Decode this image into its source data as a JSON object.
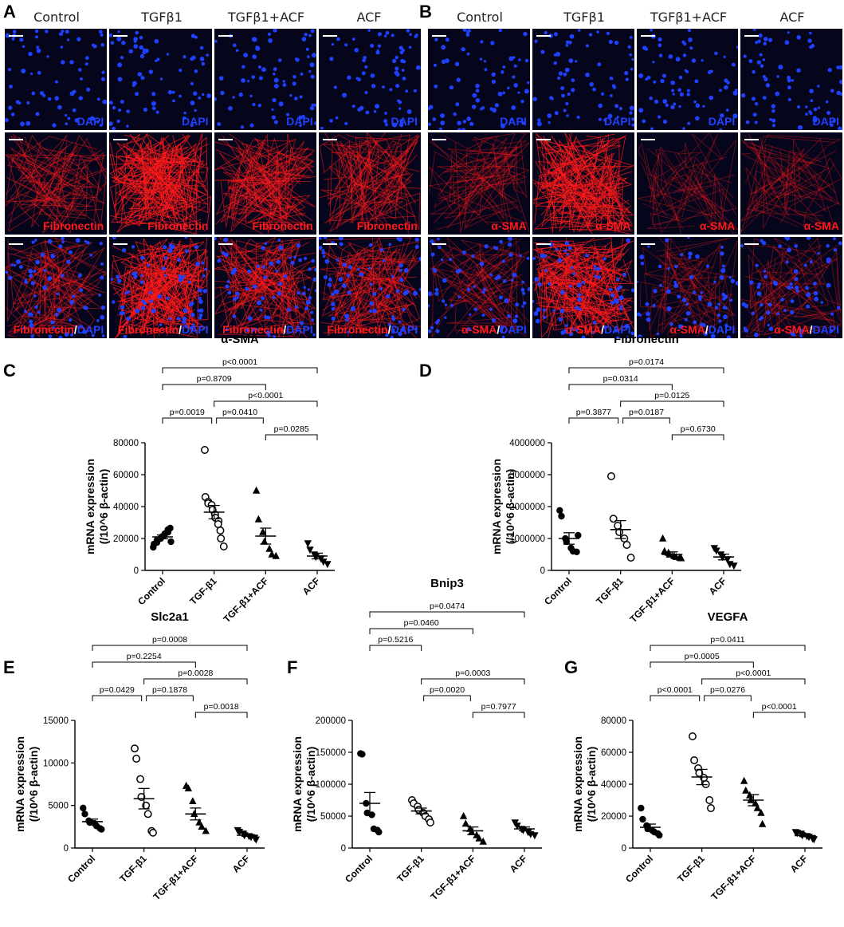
{
  "panels": {
    "A": {
      "letter": "A",
      "columns": [
        "Control",
        "TGFβ1",
        "TGFβ1+ACF",
        "ACF"
      ],
      "rows": [
        {
          "kind": "dapi",
          "label_a": "DAPI",
          "label_b": ""
        },
        {
          "kind": "stain",
          "label_a": "Fibronectin",
          "label_b": ""
        },
        {
          "kind": "merge",
          "label_a": "Fibronectin",
          "label_b": "DAPI"
        }
      ],
      "intensity": [
        [
          0.0,
          0.0,
          0.0,
          0.0
        ],
        [
          0.45,
          0.9,
          0.6,
          0.55
        ],
        [
          0.45,
          0.9,
          0.6,
          0.55
        ]
      ]
    },
    "B": {
      "letter": "B",
      "columns": [
        "Control",
        "TGFβ1",
        "TGFβ1+ACF",
        "ACF"
      ],
      "rows": [
        {
          "kind": "dapi",
          "label_a": "DAPI",
          "label_b": ""
        },
        {
          "kind": "stain",
          "label_a": "α-SMA",
          "label_b": ""
        },
        {
          "kind": "merge",
          "label_a": "α-SMA",
          "label_b": "DAPI"
        }
      ],
      "intensity": [
        [
          0.0,
          0.0,
          0.0,
          0.0
        ],
        [
          0.3,
          0.85,
          0.2,
          0.25
        ],
        [
          0.3,
          0.85,
          0.2,
          0.25
        ]
      ]
    }
  },
  "separator": "/",
  "colors": {
    "dapi": "#2040ff",
    "stain": "#ff1a1a",
    "background": "#05051c"
  },
  "chart_data": [
    {
      "panel": "C",
      "type": "scatter",
      "title": "α-SMA",
      "ylabel": [
        "mRNA expression",
        "(/10^6 β-actin)"
      ],
      "categories": [
        "Control",
        "TGF-β1",
        "TGF-β1+ACF",
        "ACF"
      ],
      "yticks": [
        0,
        20000,
        40000,
        60000,
        80000
      ],
      "ytick_labels": [
        "0",
        "20000",
        "40000",
        "60000",
        "80000"
      ],
      "ylim": [
        0,
        80000
      ],
      "markers": [
        "circle-filled",
        "circle-open",
        "triangle-up",
        "triangle-down"
      ],
      "points": [
        [
          14500,
          16500,
          17500,
          19000,
          20000,
          21000,
          22000,
          23000,
          24000,
          25500,
          26500,
          18000
        ],
        [
          75500,
          46000,
          43000,
          42000,
          41000,
          38000,
          35000,
          33000,
          31000,
          29000,
          25000,
          20000,
          15000
        ],
        [
          50000,
          32000,
          24000,
          18000,
          13500,
          10000,
          9000
        ],
        [
          17000,
          13000,
          10000,
          8500,
          7500,
          5500,
          4000
        ]
      ],
      "mean": [
        21000,
        36500,
        21500,
        9000
      ],
      "sem": [
        1200,
        4200,
        5000,
        1800
      ],
      "brackets": [
        {
          "from": 0,
          "to": 1,
          "level": 1,
          "label": "p=0.0019"
        },
        {
          "from": 1,
          "to": 2,
          "level": 1,
          "label": "p=0.0410"
        },
        {
          "from": 2,
          "to": 3,
          "level": 0,
          "label": "p=0.0285"
        },
        {
          "from": 1,
          "to": 3,
          "level": 2,
          "label": "p<0.0001"
        },
        {
          "from": 0,
          "to": 2,
          "level": 3,
          "label": "p=0.8709"
        },
        {
          "from": 0,
          "to": 3,
          "level": 4,
          "label": "p<0.0001"
        }
      ]
    },
    {
      "panel": "D",
      "type": "scatter",
      "title": "Fibronectin",
      "ylabel": [
        "mRNA expression",
        "(/10^6 β-actin)"
      ],
      "categories": [
        "Control",
        "TGF-β1",
        "TGF-β1+ACF",
        "ACF"
      ],
      "yticks": [
        0,
        1000000,
        2000000,
        3000000,
        4000000
      ],
      "ytick_labels": [
        "0",
        "1000000",
        "2000000",
        "3000000",
        "4000000"
      ],
      "ylim": [
        0,
        4000000
      ],
      "markers": [
        "circle-filled",
        "circle-open",
        "triangle-up",
        "triangle-down"
      ],
      "points": [
        [
          1880000,
          1700000,
          1000000,
          900000,
          700000,
          600000,
          580000,
          1100000
        ],
        [
          2950000,
          1620000,
          1400000,
          1200000,
          1000000,
          800000,
          400000
        ],
        [
          1000000,
          600000,
          550000,
          500000,
          450000,
          420000,
          400000,
          380000
        ],
        [
          700000,
          620000,
          500000,
          420000,
          350000,
          200000,
          150000
        ]
      ],
      "mean": [
        1000000,
        1280000,
        500000,
        420000
      ],
      "sem": [
        180000,
        280000,
        80000,
        90000
      ],
      "brackets": [
        {
          "from": 0,
          "to": 1,
          "level": 1,
          "label": "p=0.3877"
        },
        {
          "from": 1,
          "to": 2,
          "level": 1,
          "label": "p=0.0187"
        },
        {
          "from": 2,
          "to": 3,
          "level": 0,
          "label": "p=0.6730"
        },
        {
          "from": 1,
          "to": 3,
          "level": 2,
          "label": "p=0.0125"
        },
        {
          "from": 0,
          "to": 2,
          "level": 3,
          "label": "p=0.0314"
        },
        {
          "from": 0,
          "to": 3,
          "level": 4,
          "label": "p=0.0174"
        }
      ]
    },
    {
      "panel": "E",
      "type": "scatter",
      "title": "Slc2a1",
      "ylabel": [
        "mRNA expression",
        "(/10^6 β-actin)"
      ],
      "categories": [
        "Control",
        "TGF-β1",
        "TGF-β1+ACF",
        "ACF"
      ],
      "yticks": [
        0,
        5000,
        10000,
        15000
      ],
      "ytick_labels": [
        "0",
        "5000",
        "10000",
        "15000"
      ],
      "ylim": [
        0,
        15000
      ],
      "markers": [
        "circle-filled",
        "circle-open",
        "triangle-up",
        "triangle-down"
      ],
      "points": [
        [
          4700,
          4000,
          3200,
          3000,
          2900,
          2600,
          2300,
          2200
        ],
        [
          11700,
          10500,
          8100,
          6000,
          5000,
          4000,
          2000,
          1800
        ],
        [
          7300,
          7000,
          5500,
          4000,
          3000,
          2500,
          2000
        ],
        [
          2100,
          1900,
          1700,
          1500,
          1400,
          1300,
          1200,
          1000
        ]
      ],
      "mean": [
        3100,
        5800,
        4000,
        1500
      ],
      "sem": [
        300,
        1200,
        700,
        120
      ],
      "brackets": [
        {
          "from": 0,
          "to": 1,
          "level": 1,
          "label": "p=0.0429"
        },
        {
          "from": 1,
          "to": 2,
          "level": 1,
          "label": "p=0.1878"
        },
        {
          "from": 2,
          "to": 3,
          "level": 0,
          "label": "p=0.0018"
        },
        {
          "from": 1,
          "to": 3,
          "level": 2,
          "label": "p=0.0028"
        },
        {
          "from": 0,
          "to": 2,
          "level": 3,
          "label": "p=0.2254"
        },
        {
          "from": 0,
          "to": 3,
          "level": 4,
          "label": "p=0.0008"
        }
      ]
    },
    {
      "panel": "F",
      "type": "scatter",
      "title": "Bnip3",
      "ylabel": [
        "mRNA expression",
        "(/10^6 β-actin)"
      ],
      "categories": [
        "Control",
        "TGF-β1",
        "TGF-β1+ACF",
        "ACF"
      ],
      "yticks": [
        0,
        50000,
        100000,
        150000,
        200000
      ],
      "ytick_labels": [
        "0",
        "50000",
        "100000",
        "150000",
        "200000"
      ],
      "ylim": [
        0,
        200000
      ],
      "markers": [
        "circle-filled",
        "circle-open",
        "triangle-up",
        "triangle-down"
      ],
      "points": [
        [
          148000,
          147000,
          70000,
          55000,
          52000,
          30000,
          28000,
          25000
        ],
        [
          75000,
          70000,
          65000,
          60000,
          55000,
          50000,
          45000,
          40000
        ],
        [
          50000,
          38000,
          30000,
          25000,
          20000,
          15000,
          10000
        ],
        [
          40000,
          35000,
          30000,
          28000,
          25000,
          22000,
          20000
        ]
      ],
      "mean": [
        70000,
        58000,
        27000,
        30000
      ],
      "sem": [
        17000,
        4500,
        6000,
        3000
      ],
      "brackets": [
        {
          "from": 0,
          "to": 1,
          "level": 4,
          "label": "p=0.5216"
        },
        {
          "from": 2,
          "to": 3,
          "level": 0,
          "label": "p=0.7977"
        },
        {
          "from": 1,
          "to": 2,
          "level": 1,
          "label": "p=0.0020"
        },
        {
          "from": 1,
          "to": 3,
          "level": 2,
          "label": "p=0.0003"
        },
        {
          "from": 0,
          "to": 2,
          "level": 5,
          "label": "p=0.0460"
        },
        {
          "from": 0,
          "to": 3,
          "level": 6,
          "label": "p=0.0474"
        }
      ]
    },
    {
      "panel": "G",
      "type": "scatter",
      "title": "VEGFA",
      "ylabel": [
        "mRNA expression",
        "(/10^6 β-actin)"
      ],
      "categories": [
        "Control",
        "TGF-β1",
        "TGF-β1+ACF",
        "ACF"
      ],
      "yticks": [
        0,
        20000,
        40000,
        60000,
        80000
      ],
      "ytick_labels": [
        "0",
        "20000",
        "40000",
        "60000",
        "80000"
      ],
      "ylim": [
        0,
        80000
      ],
      "markers": [
        "circle-filled",
        "circle-open",
        "triangle-up",
        "triangle-down"
      ],
      "points": [
        [
          25000,
          18000,
          14000,
          12000,
          11000,
          10000,
          9000,
          8000
        ],
        [
          70000,
          55000,
          50000,
          47000,
          44000,
          40000,
          30000,
          25000
        ],
        [
          42000,
          36000,
          33000,
          30000,
          28000,
          25000,
          22000,
          15000
        ],
        [
          10000,
          9500,
          9000,
          8000,
          7500,
          7000,
          6000,
          5500
        ]
      ],
      "mean": [
        13000,
        44500,
        30000,
        7800
      ],
      "sem": [
        2000,
        4800,
        3500,
        700
      ],
      "brackets": [
        {
          "from": 0,
          "to": 1,
          "level": 1,
          "label": "p<0.0001"
        },
        {
          "from": 1,
          "to": 2,
          "level": 1,
          "label": "p=0.0276"
        },
        {
          "from": 2,
          "to": 3,
          "level": 0,
          "label": "p<0.0001"
        },
        {
          "from": 1,
          "to": 3,
          "level": 2,
          "label": "p<0.0001"
        },
        {
          "from": 0,
          "to": 2,
          "level": 3,
          "label": "p=0.0005"
        },
        {
          "from": 0,
          "to": 3,
          "level": 4,
          "label": "p=0.0411"
        }
      ]
    }
  ]
}
